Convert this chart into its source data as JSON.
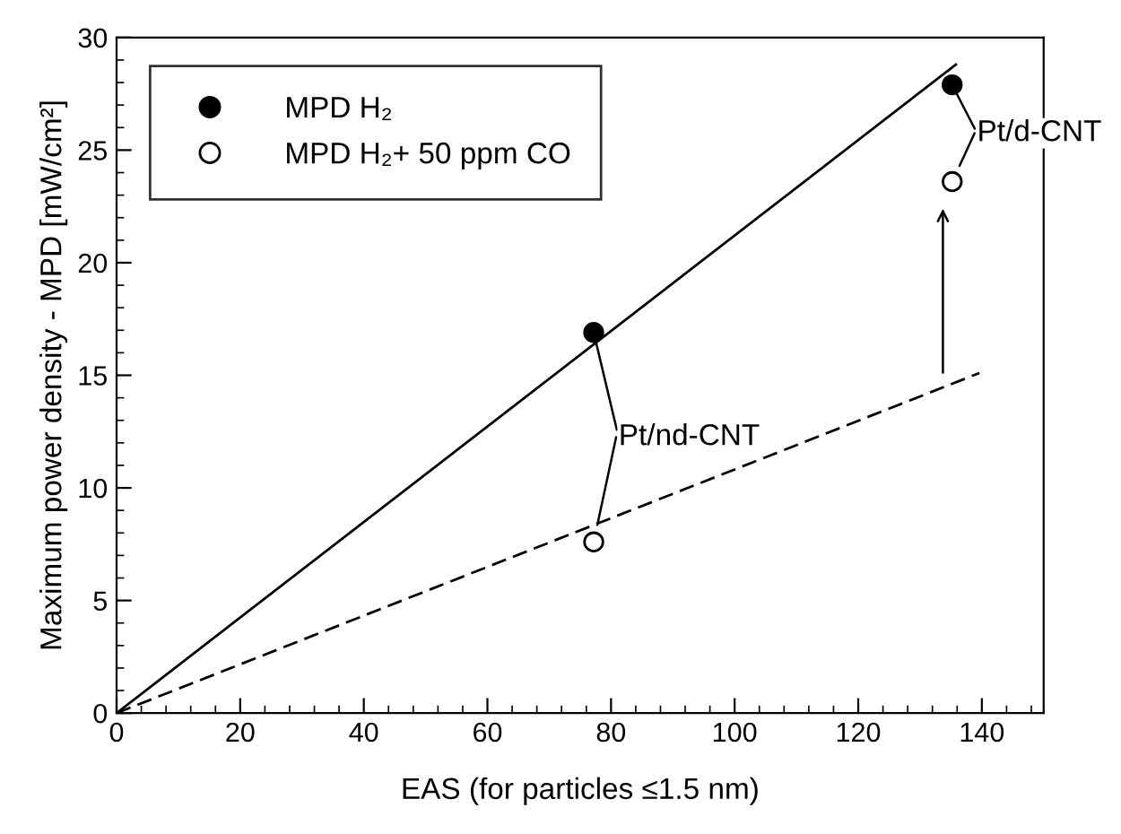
{
  "chart_data": {
    "type": "scatter",
    "xlabel": "EAS (for particles ≤1.5 nm)",
    "ylabel": "Maximum power density - MPD [mW/cm²]",
    "xlim": [
      0,
      150
    ],
    "ylim": [
      0,
      30
    ],
    "xticks": [
      0,
      20,
      40,
      60,
      80,
      100,
      120,
      140
    ],
    "yticks": [
      0,
      5,
      10,
      15,
      20,
      25,
      30
    ],
    "grid": false,
    "legend": "top left",
    "series": [
      {
        "name": "MPD H₂",
        "color": "#000000",
        "x": [
          77.2,
          135.2
        ],
        "values": [
          16.9,
          27.9
        ],
        "marker": "circle"
      },
      {
        "name": "MPD H₂+ 50 ppm CO",
        "color": "#000000",
        "x": [
          77.2,
          135.2
        ],
        "values": [
          7.6,
          23.6
        ],
        "marker": "circle"
      },
      {
        "type": "line",
        "color": "#000000",
        "x": [
          0,
          135.8
        ],
        "values": [
          0,
          28.8
        ],
        "line_style": "solid"
      },
      {
        "type": "line",
        "color": "#000000",
        "x": [
          0,
          139.6
        ],
        "values": [
          0,
          15.1
        ],
        "line_style": "dashed"
      }
    ],
    "annotations": [
      {
        "text": "Pt/nd-CNT",
        "x": 77.2,
        "y": 16.9
      },
      {
        "text": "Pt/d-CNT",
        "x": 135.2,
        "y": 27.9
      }
    ]
  }
}
